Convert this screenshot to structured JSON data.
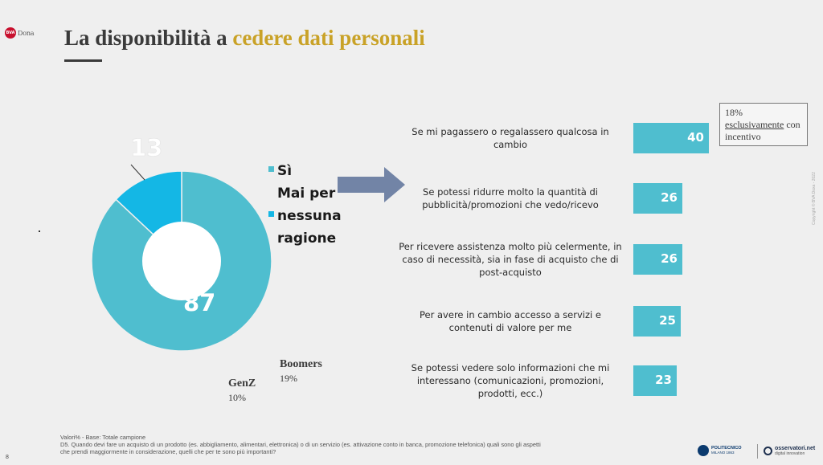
{
  "brand": {
    "logo_text": "Dona"
  },
  "title": {
    "prefix": "La disponibilità a ",
    "highlight": "cedere dati personali"
  },
  "donut": {
    "segments": [
      {
        "label": "Sì",
        "value": 87,
        "color": "#4fbecf"
      },
      {
        "label": "Mai per nessuna ragione",
        "value": 13,
        "color": "#14b7e5"
      }
    ],
    "value_labels": [
      "13",
      "87"
    ]
  },
  "legend": {
    "items": [
      {
        "line1": "Sì",
        "line2": ""
      },
      {
        "line1": "Mai per",
        "line2": "nessuna",
        "line3": "ragione"
      }
    ]
  },
  "chart_data": {
    "type": "bar",
    "categories": [
      "Se mi pagassero o regalassero qualcosa in cambio",
      "Se potessi ridurre molto la quantità di pubblicità/promozioni che vedo/ricevo",
      "Per ricevere assistenza molto più celermente, in caso di necessità, sia in fase di acquisto che di post-acquisto",
      "Per avere in cambio accesso a servizi e contenuti di valore per me",
      "Se potessi vedere solo informazioni che mi interessano (comunicazioni, promozioni, prodotti, ecc.)"
    ],
    "values": [
      40,
      26,
      26,
      25,
      23
    ],
    "labels_multiline": [
      [
        "Se mi pagassero o regalassero qualcosa in",
        "cambio"
      ],
      [
        "Se potessi ridurre molto la quantità di",
        "pubblicità/promozioni che vedo/ricevo"
      ],
      [
        "Per ricevere assistenza molto più celermente, in",
        "caso di necessità, sia in fase di acquisto che di",
        "post-acquisto"
      ],
      [
        "Per avere in cambio accesso a servizi e",
        "contenuti di valore per me"
      ],
      [
        "Se potessi vedere solo informazioni che mi",
        "interessano (comunicazioni, promozioni,",
        "prodotti, ecc.)"
      ]
    ],
    "value_labels": [
      "40",
      "26",
      "26",
      "25",
      "23"
    ],
    "color": "#4fbecf"
  },
  "callout": {
    "line1": "18%",
    "underlined": "esclusivamente",
    "after_underline": " con",
    "line3": "incentivo"
  },
  "generations": {
    "boomers": {
      "name": "Boomers",
      "pct": "19%"
    },
    "genz": {
      "name": "GenZ",
      "pct": "10%"
    }
  },
  "footnote": {
    "line1": "Valori% - Base: Totale campione",
    "line2": "D5. Quando devi fare un acquisto di un prodotto (es. abbigliamento, alimentari, elettronica) o di un servizio (es. attivazione conto in banca, promozione telefonica) quali sono gli aspetti",
    "line3": "che prendi maggiormente in considerazione, quelli che per te sono più importanti?"
  },
  "page_number": "8",
  "copyright": "Copyright © BVA Doxa - 2022",
  "logos": {
    "polimi_name": "POLITECNICO",
    "polimi_sub": "MILANO 1863",
    "osservatori_name": "osservatori.net",
    "osservatori_sub": "digital innovation"
  }
}
